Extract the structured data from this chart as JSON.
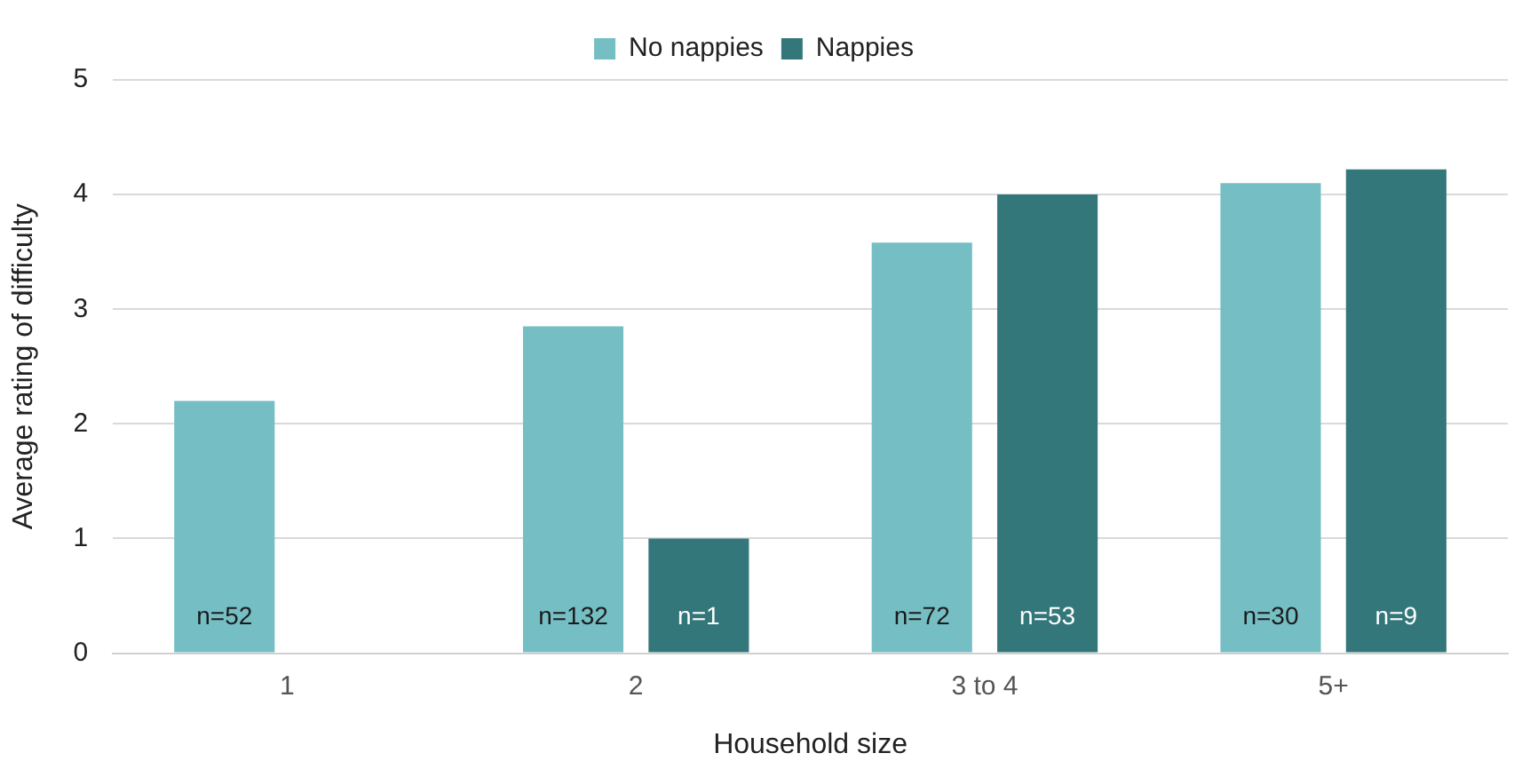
{
  "chart_data": {
    "type": "bar",
    "xlabel": "Household size",
    "ylabel": "Average rating of difficulty",
    "categories": [
      "1",
      "2",
      "3 to 4",
      "5+"
    ],
    "series": [
      {
        "name": "No nappies",
        "color": "#75bec4",
        "values": [
          2.2,
          2.85,
          3.58,
          4.1
        ]
      },
      {
        "name": "Nappies",
        "color": "#34777b",
        "values": [
          null,
          1.0,
          4.0,
          4.22
        ]
      }
    ],
    "annotations": [
      "n=52",
      "n=132",
      "n=1",
      "n=72",
      "n=53",
      "n=30",
      "n=9"
    ],
    "ylim": [
      0,
      5
    ],
    "yticks": [
      0,
      1,
      2,
      3,
      4,
      5
    ],
    "grid": "y",
    "legend": "top"
  }
}
